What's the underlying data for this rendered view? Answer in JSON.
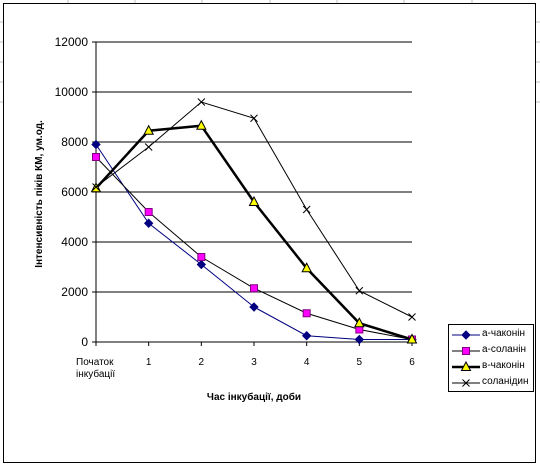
{
  "colors": {
    "background": "#ffffff",
    "gridline": "#000000",
    "sheet_grid": "#c0c0c0"
  },
  "sheet_fragments": [
    "Початок",
    "1",
    "2",
    "3",
    "4",
    "5",
    "6",
    "а",
    "а",
    "в",
    "с",
    "0",
    "0",
    "0",
    "0"
  ],
  "chart_data": {
    "type": "line",
    "title": "",
    "xlabel": "Час інкубації, доби",
    "ylabel": "Інтенсивність піків КМ, ум.од.",
    "categories": [
      "Початок\nінкубації",
      "1",
      "2",
      "3",
      "4",
      "5",
      "6"
    ],
    "ylim": [
      0,
      12000
    ],
    "yticks": [
      0,
      2000,
      4000,
      6000,
      8000,
      10000,
      12000
    ],
    "grid": "horizontal major gridlines",
    "legend_position": "right",
    "series": [
      {
        "name": "а-чаконін",
        "values": [
          7900,
          4750,
          3100,
          1400,
          250,
          100,
          100
        ],
        "color": "#000080",
        "marker": "diamond",
        "width": 1
      },
      {
        "name": "а-соланін",
        "values": [
          7400,
          5200,
          3400,
          2150,
          1150,
          500,
          100
        ],
        "color": "#000000",
        "marker": "square",
        "marker_fill": "#ff00ff",
        "width": 1
      },
      {
        "name": "в-чаконін",
        "values": [
          6150,
          8450,
          8650,
          5600,
          2950,
          750,
          100
        ],
        "color": "#000000",
        "marker": "triangle",
        "marker_fill": "#ffff00",
        "width": 2.5
      },
      {
        "name": "соланідин",
        "values": [
          6200,
          7800,
          9600,
          8950,
          5300,
          2050,
          1000
        ],
        "color": "#000000",
        "marker": "x",
        "width": 1
      }
    ]
  }
}
